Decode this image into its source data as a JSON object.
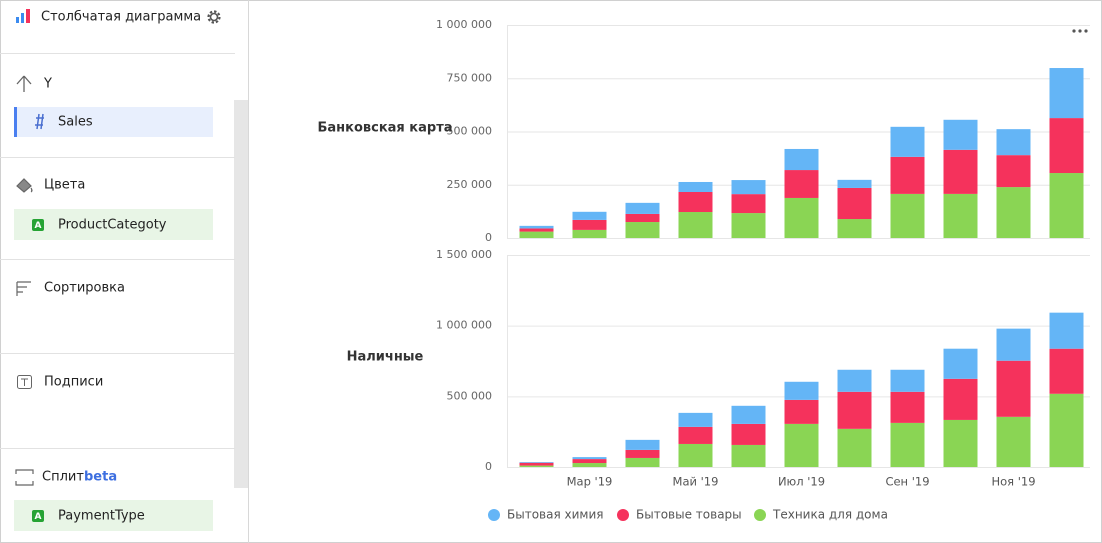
{
  "sidebar": {
    "title": "Столбчатая диаграмма",
    "sections": [
      {
        "label": "Y",
        "field": "Sales"
      },
      {
        "label": "Цвета",
        "field": "ProductCategoty",
        "badge": "A"
      },
      {
        "label": "Сортировка"
      },
      {
        "label": "Подписи"
      },
      {
        "label": "Сплит",
        "tag": "beta",
        "field": "PaymentType",
        "badge": "A"
      }
    ]
  },
  "chart_data": {
    "type": "bar",
    "stacked": true,
    "grid": true,
    "categories": [
      null,
      "Мар '19",
      null,
      "Май '19",
      null,
      "Июл '19",
      null,
      "Сен '19",
      null,
      "Ноя '19",
      null
    ],
    "series": [
      {
        "name": "Бытовая химия",
        "color": "#64b5f6"
      },
      {
        "name": "Бытовые товары",
        "color": "#f5325c"
      },
      {
        "name": "Техника для дома",
        "color": "#8ad554"
      }
    ],
    "panels": [
      {
        "label": "Банковская карта",
        "ylim": [
          0,
          1000000
        ],
        "yticks": [
          0,
          {
            "value": 250000,
            "label": "250 000"
          },
          {
            "value": 500000,
            "label": "500 000"
          },
          {
            "value": 750000,
            "label": "750 000"
          },
          {
            "value": 1000000,
            "label": "1 000 000"
          }
        ],
        "values": [
          [
            12000,
            38000,
            52000,
            47000,
            66000,
            99000,
            38000,
            141000,
            141000,
            122000,
            235000
          ],
          [
            15000,
            47000,
            38000,
            94000,
            89000,
            131000,
            146000,
            174000,
            207000,
            150000,
            258000
          ],
          [
            30000,
            38000,
            75000,
            122000,
            117000,
            188000,
            89000,
            207000,
            207000,
            239000,
            305000
          ]
        ]
      },
      {
        "label": "Наличные",
        "ylim": [
          0,
          1500000
        ],
        "yticks": [
          0,
          {
            "value": 500000,
            "label": "500 000"
          },
          {
            "value": 1000000,
            "label": "1 000 000"
          },
          {
            "value": 1500000,
            "label": "1 500 000"
          }
        ],
        "values": [
          [
            5000,
            14000,
            71000,
            99000,
            128000,
            128000,
            156000,
            156000,
            213000,
            227000,
            255000
          ],
          [
            20000,
            28000,
            57000,
            121000,
            149000,
            170000,
            262000,
            220000,
            291000,
            397000,
            319000
          ],
          [
            10000,
            28000,
            64000,
            163000,
            156000,
            305000,
            270000,
            312000,
            333000,
            355000,
            518000
          ]
        ]
      }
    ]
  }
}
